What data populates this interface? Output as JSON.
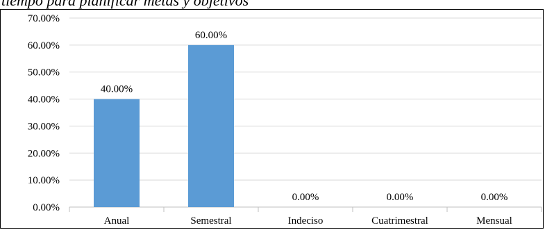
{
  "caption": "tiempo para planificar metas y objetivos",
  "colors": {
    "bar": "#5b9bd5",
    "grid": "#d9d9d9",
    "axis": "#bfbfbf",
    "text": "#000000"
  },
  "chart_data": {
    "type": "bar",
    "categories": [
      "Anual",
      "Semestral",
      "Indeciso",
      "Cuatrimestral",
      "Mensual"
    ],
    "values": [
      40,
      60,
      0,
      0,
      0
    ],
    "data_labels": [
      "40.00%",
      "60.00%",
      "0.00%",
      "0.00%",
      "0.00%"
    ],
    "yticks": [
      "0.00%",
      "10.00%",
      "20.00%",
      "30.00%",
      "40.00%",
      "50.00%",
      "60.00%",
      "70.00%"
    ],
    "ylim": [
      0,
      70
    ],
    "grid": true,
    "legend": "none"
  }
}
